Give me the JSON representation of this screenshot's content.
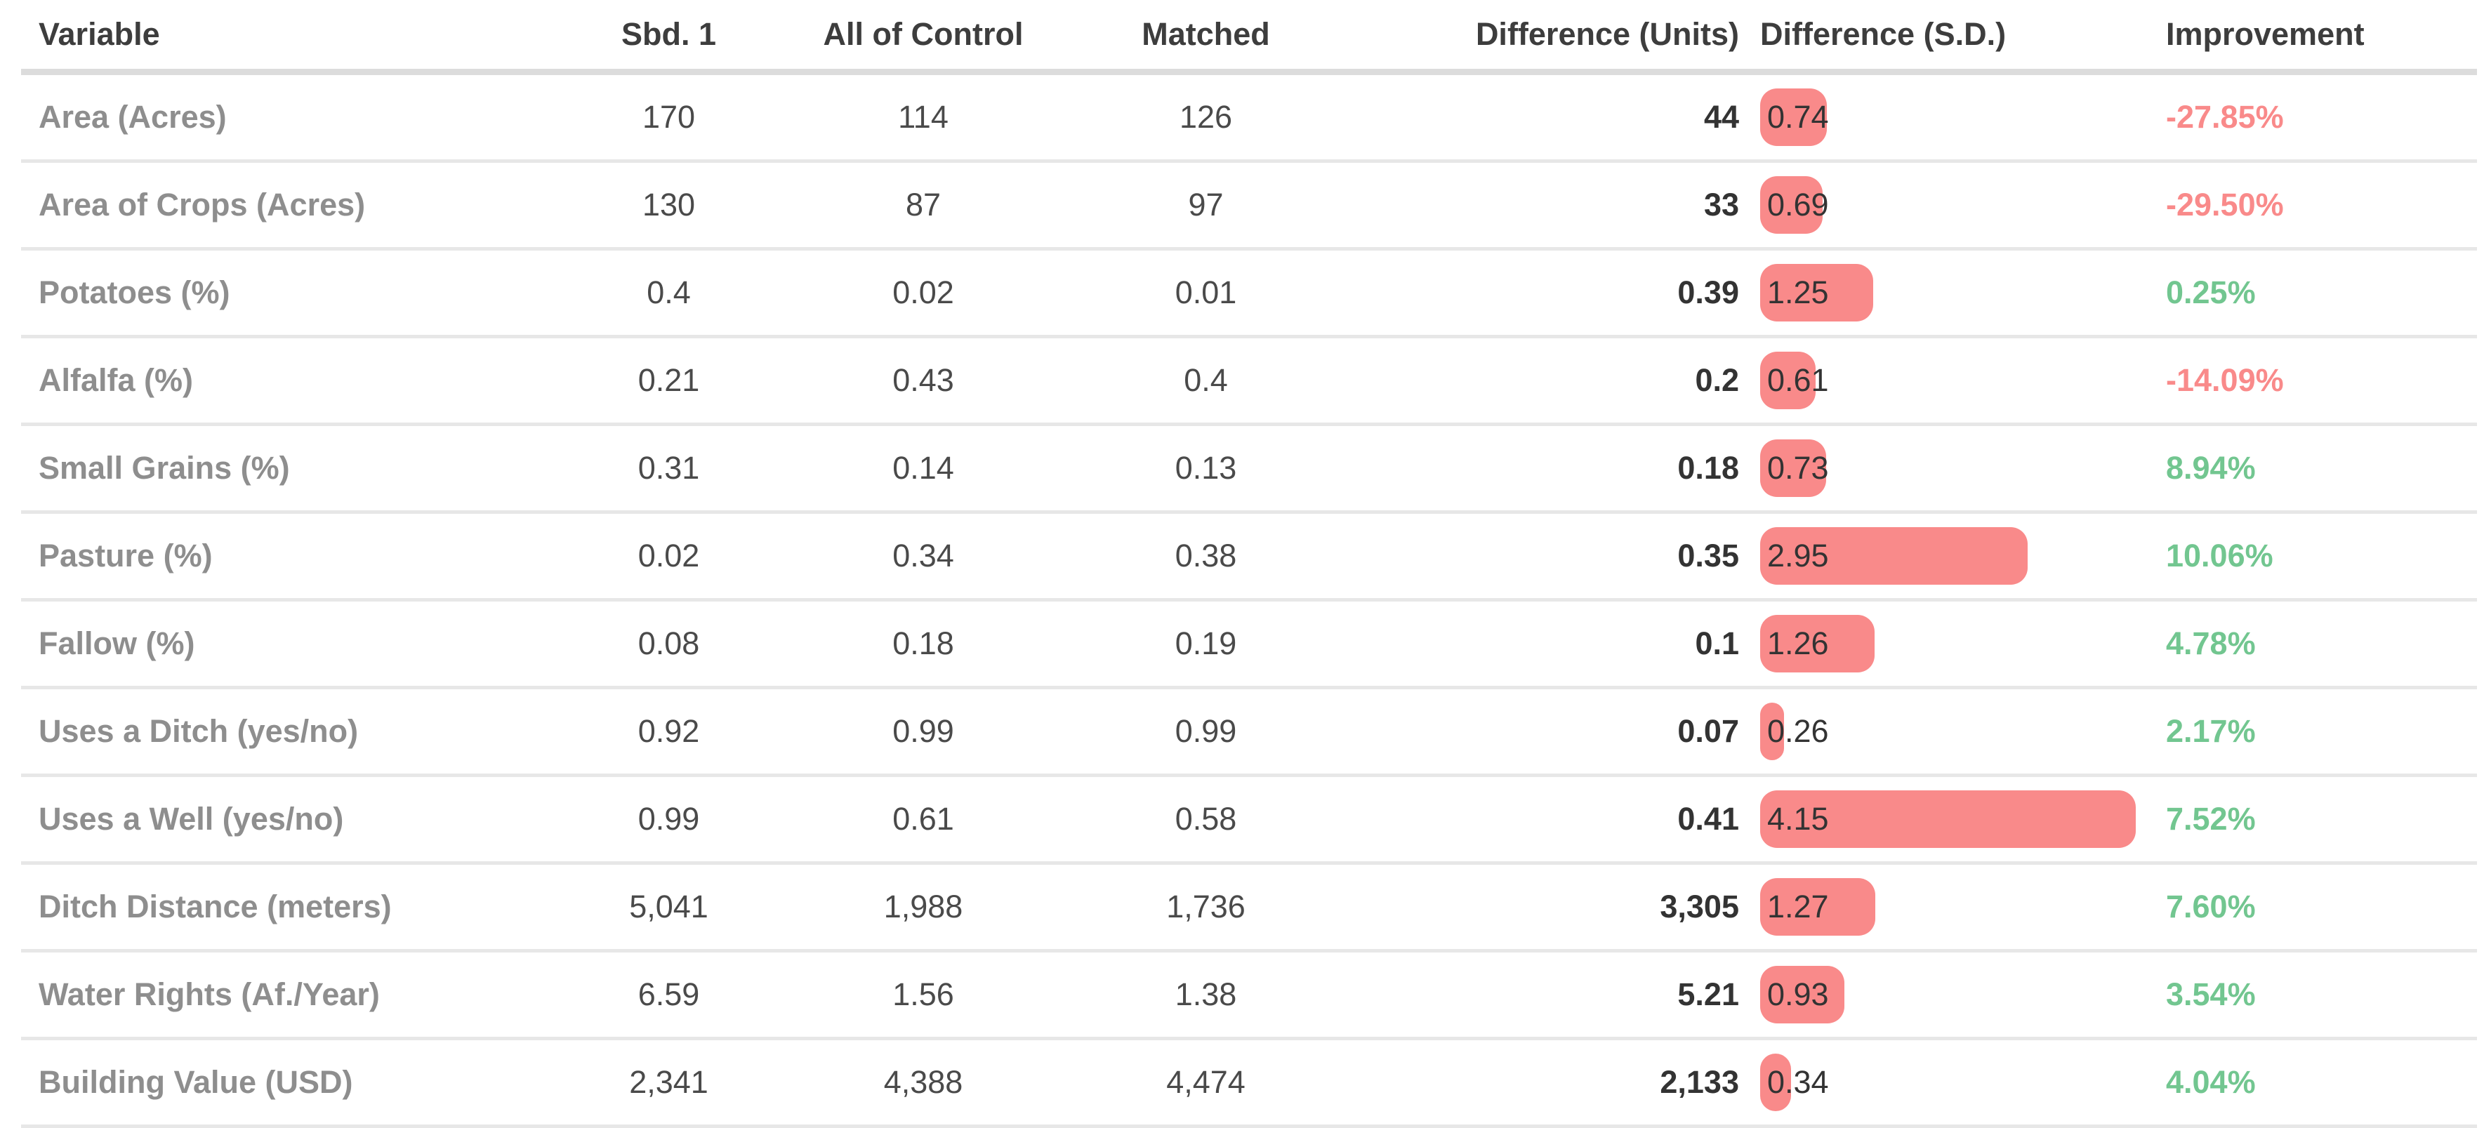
{
  "colors": {
    "bar": "#f98a8a",
    "improvement_positive": "#72c690",
    "improvement_negative": "#f98a8a",
    "label_gray": "#8e8e8e",
    "header_text": "#3d3d3d",
    "value_text": "#4a4a4a"
  },
  "table": {
    "columns": [
      {
        "label": "Variable",
        "align": "left"
      },
      {
        "label": "Sbd. 1",
        "align": "center"
      },
      {
        "label": "All of Control",
        "align": "center"
      },
      {
        "label": "Matched",
        "align": "center"
      },
      {
        "label": "Difference (Units)",
        "align": "right"
      },
      {
        "label": "Difference (S.D.)",
        "align": "left"
      },
      {
        "label": "Improvement",
        "align": "left"
      }
    ],
    "rows": [
      {
        "variable": "Area (Acres)",
        "sbd1": "170",
        "control": "114",
        "matched": "126",
        "diff_units": "44",
        "sd": 0.74,
        "sd_label": "0.74",
        "improvement": "-27.85%",
        "direction": "negative"
      },
      {
        "variable": "Area of Crops (Acres)",
        "sbd1": "130",
        "control": "87",
        "matched": "97",
        "diff_units": "33",
        "sd": 0.69,
        "sd_label": "0.69",
        "improvement": "-29.50%",
        "direction": "negative"
      },
      {
        "variable": "Potatoes (%)",
        "sbd1": "0.4",
        "control": "0.02",
        "matched": "0.01",
        "diff_units": "0.39",
        "sd": 1.25,
        "sd_label": "1.25",
        "improvement": "0.25%",
        "direction": "positive"
      },
      {
        "variable": "Alfalfa (%)",
        "sbd1": "0.21",
        "control": "0.43",
        "matched": "0.4",
        "diff_units": "0.2",
        "sd": 0.61,
        "sd_label": "0.61",
        "improvement": "-14.09%",
        "direction": "negative"
      },
      {
        "variable": "Small Grains (%)",
        "sbd1": "0.31",
        "control": "0.14",
        "matched": "0.13",
        "diff_units": "0.18",
        "sd": 0.73,
        "sd_label": "0.73",
        "improvement": "8.94%",
        "direction": "positive"
      },
      {
        "variable": "Pasture (%)",
        "sbd1": "0.02",
        "control": "0.34",
        "matched": "0.38",
        "diff_units": "0.35",
        "sd": 2.95,
        "sd_label": "2.95",
        "improvement": "10.06%",
        "direction": "positive"
      },
      {
        "variable": "Fallow (%)",
        "sbd1": "0.08",
        "control": "0.18",
        "matched": "0.19",
        "diff_units": "0.1",
        "sd": 1.26,
        "sd_label": "1.26",
        "improvement": "4.78%",
        "direction": "positive"
      },
      {
        "variable": "Uses a Ditch (yes/no)",
        "sbd1": "0.92",
        "control": "0.99",
        "matched": "0.99",
        "diff_units": "0.07",
        "sd": 0.26,
        "sd_label": "0.26",
        "improvement": "2.17%",
        "direction": "positive"
      },
      {
        "variable": "Uses a Well (yes/no)",
        "sbd1": "0.99",
        "control": "0.61",
        "matched": "0.58",
        "diff_units": "0.41",
        "sd": 4.15,
        "sd_label": "4.15",
        "improvement": "7.52%",
        "direction": "positive"
      },
      {
        "variable": "Ditch Distance (meters)",
        "sbd1": "5,041",
        "control": "1,988",
        "matched": "1,736",
        "diff_units": "3,305",
        "sd": 1.27,
        "sd_label": "1.27",
        "improvement": "7.60%",
        "direction": "positive"
      },
      {
        "variable": "Water Rights (Af./Year)",
        "sbd1": "6.59",
        "control": "1.56",
        "matched": "1.38",
        "diff_units": "5.21",
        "sd": 0.93,
        "sd_label": "0.93",
        "improvement": "3.54%",
        "direction": "positive"
      },
      {
        "variable": "Building Value (USD)",
        "sbd1": "2,341",
        "control": "4,388",
        "matched": "4,474",
        "diff_units": "2,133",
        "sd": 0.34,
        "sd_label": "0.34",
        "improvement": "4.04%",
        "direction": "positive"
      }
    ]
  },
  "chart_data": {
    "type": "table",
    "columns": [
      "Variable",
      "Sbd. 1",
      "All of Control",
      "Matched",
      "Difference (Units)",
      "Difference (S.D.)",
      "Improvement (%)"
    ],
    "rows": [
      [
        "Area (Acres)",
        170,
        114,
        126,
        44,
        0.74,
        -27.85
      ],
      [
        "Area of Crops (Acres)",
        130,
        87,
        97,
        33,
        0.69,
        -29.5
      ],
      [
        "Potatoes (%)",
        0.4,
        0.02,
        0.01,
        0.39,
        1.25,
        0.25
      ],
      [
        "Alfalfa (%)",
        0.21,
        0.43,
        0.4,
        0.2,
        0.61,
        -14.09
      ],
      [
        "Small Grains (%)",
        0.31,
        0.14,
        0.13,
        0.18,
        0.73,
        8.94
      ],
      [
        "Pasture (%)",
        0.02,
        0.34,
        0.38,
        0.35,
        2.95,
        10.06
      ],
      [
        "Fallow (%)",
        0.08,
        0.18,
        0.19,
        0.1,
        1.26,
        4.78
      ],
      [
        "Uses a Ditch (yes/no)",
        0.92,
        0.99,
        0.99,
        0.07,
        0.26,
        2.17
      ],
      [
        "Uses a Well (yes/no)",
        0.99,
        0.61,
        0.58,
        0.41,
        4.15,
        7.52
      ],
      [
        "Ditch Distance (meters)",
        5041,
        1988,
        1736,
        3305,
        1.27,
        7.6
      ],
      [
        "Water Rights (Af./Year)",
        6.59,
        1.56,
        1.38,
        5.21,
        0.93,
        3.54
      ],
      [
        "Building Value (USD)",
        2341,
        4388,
        4474,
        2133,
        0.34,
        4.04
      ]
    ],
    "layout_hints": {
      "sd_column_rendered_as": "proportional horizontal bar, ~129px per S.D. unit, salmon #f98a8a, value overlaid at bar left",
      "improvement_color_rule": "green #72c690 if positive, salmon #f98a8a if negative",
      "grid": "horizontal row separators only"
    }
  }
}
